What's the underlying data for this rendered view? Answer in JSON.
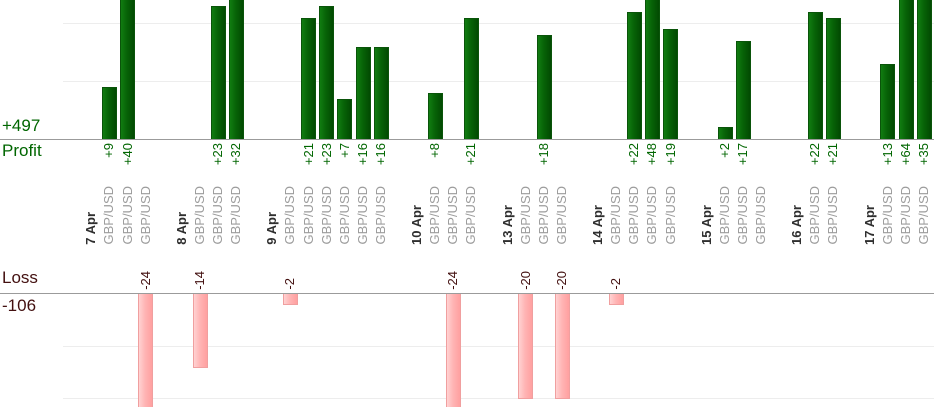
{
  "labels": {
    "profit_total": "+497",
    "profit_axis": "Profit",
    "loss_axis": "Loss",
    "loss_total": "-106"
  },
  "chart_data": {
    "type": "bar",
    "orientation": "vertical; profit bars rise above upper axis, loss bars hang below lower axis",
    "symbol": "GBP/USD",
    "x_axis_note": "each trade tick-labelled GBP/USD, grouped under bold date labels, all labels rotated 90deg",
    "series": [
      {
        "date": "7 Apr",
        "trades": [
          9,
          40,
          -24
        ]
      },
      {
        "date": "8 Apr",
        "trades": [
          -14,
          23,
          32
        ]
      },
      {
        "date": "9 Apr",
        "trades": [
          -2,
          21,
          23,
          7,
          16,
          16
        ]
      },
      {
        "date": "10 Apr",
        "trades": [
          8,
          -24,
          21
        ]
      },
      {
        "date": "13 Apr",
        "trades": [
          -20,
          18,
          -20
        ]
      },
      {
        "date": "14 Apr",
        "trades": [
          -2,
          22,
          48,
          19
        ]
      },
      {
        "date": "15 Apr",
        "trades": [
          2,
          17,
          0
        ]
      },
      {
        "date": "16 Apr",
        "trades": [
          22,
          21
        ]
      },
      {
        "date": "17 Apr",
        "trades": [
          13,
          64,
          35
        ]
      }
    ],
    "totals": {
      "profit": 497,
      "loss": -106
    },
    "axis_labels": {
      "top": "Profit",
      "bottom": "Loss"
    },
    "gridline_step": 10,
    "visible_value_range": {
      "profit": [
        0,
        24
      ],
      "loss": [
        -21,
        0
      ]
    },
    "bars_exceeding_range_are_clipped": true,
    "zero_value_trades_have_no_bar_and_no_label": true,
    "colors": {
      "profit_bar": "#0a6b0a",
      "loss_bar": "#ffb3b3",
      "profit_text": "#006600",
      "loss_text": "#431010",
      "date_text": "#2f2f2f",
      "symbol_text": "#9c9c9c",
      "axis_line": "#9b9b9b",
      "gridline": "#ededed"
    }
  }
}
